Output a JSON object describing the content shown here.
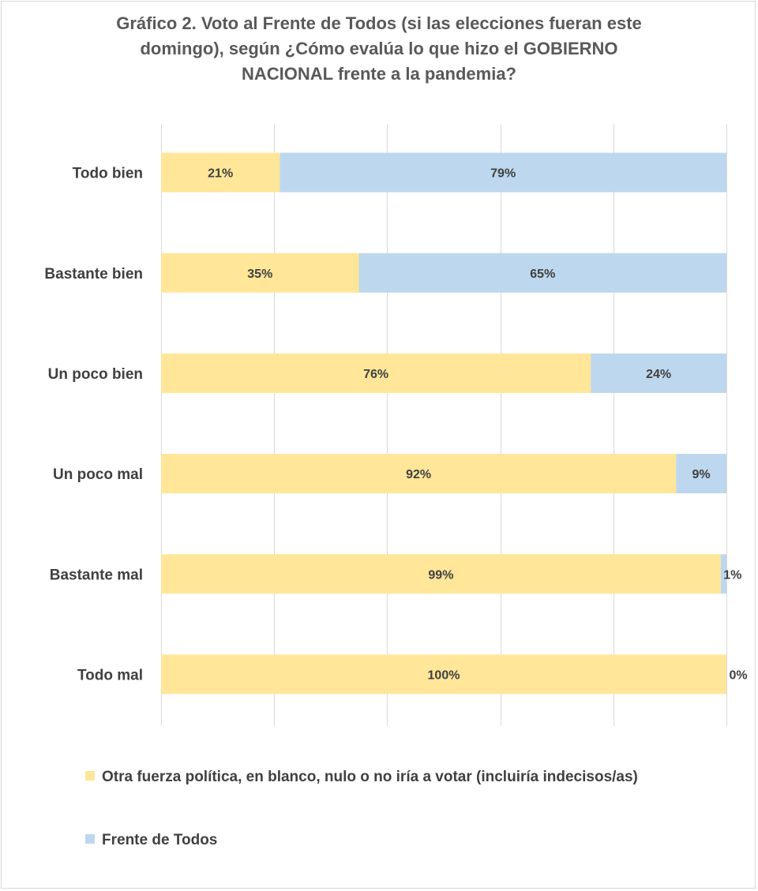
{
  "chart_data": {
    "type": "bar",
    "orientation": "horizontal",
    "stacked": "percent",
    "title": "Gráfico 2. Voto al Frente de Todos (si las elecciones fueran este domingo), según ¿Cómo evalúa lo que hizo el GOBIERNO NACIONAL frente a la pandemia?",
    "title_lines": [
      "Gráfico 2. Voto al Frente de Todos (si las elecciones fueran este",
      "domingo), según ¿Cómo evalúa lo que hizo el GOBIERNO",
      "NACIONAL frente a la pandemia?"
    ],
    "categories": [
      "Todo bien",
      "Bastante bien",
      "Un poco bien",
      "Un poco mal",
      "Bastante mal",
      "Todo mal"
    ],
    "series": [
      {
        "name": "Otra fuerza política, en blanco, nulo o no iría a votar (incluiría indecisos/as)",
        "color": "#ffe699",
        "values": [
          21,
          35,
          76,
          92,
          99,
          100
        ],
        "labels": [
          "21%",
          "35%",
          "76%",
          "92%",
          "99%",
          "100%"
        ]
      },
      {
        "name": "Frente de Todos",
        "color": "#bdd7ee",
        "values": [
          79,
          65,
          24,
          9,
          1,
          0
        ],
        "labels": [
          "79%",
          "65%",
          "24%",
          "9%",
          "1%",
          "0%"
        ]
      }
    ],
    "xlim": [
      0,
      100
    ],
    "grid": true,
    "legend_position": "bottom"
  }
}
